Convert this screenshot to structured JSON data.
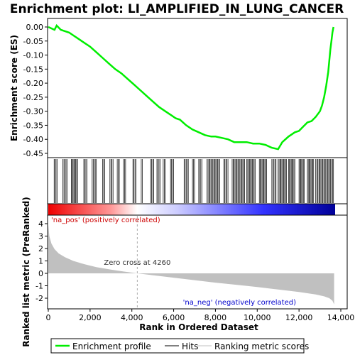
{
  "chart_data": {
    "type": "line",
    "title": "Enrichment plot: LI_AMPLIFIED_IN_LUNG_CANCER",
    "colors": {
      "profile": "#00ee00",
      "hits": "#000000",
      "metric_fill": "#c0c0c0",
      "pos_label": "#cc0000",
      "neg_label": "#0000cc",
      "zero_line": "#aaaaaa"
    },
    "top_panel": {
      "ylabel": "Enrichment score (ES)",
      "ylim": [
        -0.46,
        0.01
      ],
      "yticks": [
        "0.00",
        "-0.05",
        "-0.10",
        "-0.15",
        "-0.20",
        "-0.25",
        "-0.30",
        "-0.35",
        "-0.40",
        "-0.45"
      ],
      "ytick_values": [
        0.0,
        -0.05,
        -0.1,
        -0.15,
        -0.2,
        -0.25,
        -0.3,
        -0.35,
        -0.4,
        -0.45
      ],
      "series": [
        {
          "name": "Enrichment profile",
          "x": [
            0,
            300,
            400,
            600,
            800,
            1000,
            1200,
            1400,
            1700,
            2000,
            2300,
            2600,
            2900,
            3200,
            3500,
            3800,
            4100,
            4400,
            4700,
            5000,
            5300,
            5600,
            5900,
            6100,
            6300,
            6600,
            6900,
            7200,
            7500,
            7800,
            8000,
            8300,
            8600,
            8900,
            9200,
            9500,
            9800,
            10100,
            10400,
            10700,
            11000,
            11200,
            11500,
            11800,
            12000,
            12200,
            12400,
            12600,
            12800,
            13000,
            13100,
            13200,
            13300,
            13400,
            13450,
            13500,
            13550,
            13600,
            13650
          ],
          "values": [
            0.0,
            -0.01,
            0.005,
            -0.01,
            -0.015,
            -0.02,
            -0.03,
            -0.04,
            -0.055,
            -0.07,
            -0.09,
            -0.11,
            -0.13,
            -0.15,
            -0.165,
            -0.185,
            -0.205,
            -0.225,
            -0.245,
            -0.265,
            -0.285,
            -0.3,
            -0.315,
            -0.325,
            -0.33,
            -0.35,
            -0.365,
            -0.375,
            -0.385,
            -0.39,
            -0.39,
            -0.395,
            -0.4,
            -0.41,
            -0.41,
            -0.41,
            -0.415,
            -0.415,
            -0.42,
            -0.43,
            -0.435,
            -0.41,
            -0.39,
            -0.375,
            -0.37,
            -0.355,
            -0.34,
            -0.335,
            -0.32,
            -0.3,
            -0.28,
            -0.25,
            -0.21,
            -0.16,
            -0.12,
            -0.08,
            -0.05,
            -0.02,
            0.0
          ]
        }
      ]
    },
    "hits_band": {
      "segments": [
        [
          280,
          420
        ],
        [
          700,
          900
        ],
        [
          1100,
          1400
        ],
        [
          1700,
          1850
        ],
        [
          2100,
          2300
        ],
        [
          2600,
          2700
        ],
        [
          2950,
          3100
        ],
        [
          3300,
          3400
        ],
        [
          3600,
          3700
        ],
        [
          4050,
          4200
        ],
        [
          4450,
          4500
        ],
        [
          4900,
          5050
        ],
        [
          5200,
          5350
        ],
        [
          5500,
          5600
        ],
        [
          5850,
          6000
        ],
        [
          6500,
          6700
        ],
        [
          6900,
          7000
        ],
        [
          7200,
          7350
        ],
        [
          7600,
          8200
        ],
        [
          8400,
          8600
        ],
        [
          8800,
          9400
        ],
        [
          9500,
          9900
        ],
        [
          10100,
          10450
        ],
        [
          10700,
          10900
        ],
        [
          11000,
          11400
        ],
        [
          11500,
          11800
        ],
        [
          12000,
          12250
        ],
        [
          12400,
          12700
        ],
        [
          12800,
          13000
        ],
        [
          13000,
          13650
        ]
      ],
      "density_note": ""
    },
    "metric_panel": {
      "ylabel": "Ranked list metric (PreRanked)",
      "ylim": [
        -2.6,
        4.2
      ],
      "yticks": [
        "4",
        "3",
        "2",
        "1",
        "0",
        "-1",
        "-2"
      ],
      "ytick_values": [
        4,
        3,
        2,
        1,
        0,
        -1,
        -2
      ],
      "xlabel": "Rank in Ordered Dataset",
      "xlim": [
        0,
        14000
      ],
      "xticks": [
        "0",
        "2,000",
        "4,000",
        "6,000",
        "8,000",
        "10,000",
        "12,000",
        "14,000"
      ],
      "xtick_values": [
        0,
        2000,
        4000,
        6000,
        8000,
        10000,
        12000,
        14000
      ],
      "curve_x": [
        0,
        50,
        150,
        300,
        500,
        800,
        1200,
        1700,
        2300,
        3000,
        3600,
        4260,
        5000,
        6000,
        7000,
        8000,
        9000,
        10000,
        11000,
        12000,
        12800,
        13200,
        13450,
        13600,
        13680
      ],
      "curve_y": [
        3.9,
        3.0,
        2.4,
        1.95,
        1.6,
        1.3,
        1.0,
        0.75,
        0.5,
        0.3,
        0.15,
        0.0,
        -0.15,
        -0.35,
        -0.55,
        -0.75,
        -0.92,
        -1.1,
        -1.3,
        -1.5,
        -1.7,
        -1.85,
        -2.0,
        -2.2,
        -2.5
      ],
      "zero_cross_label": "Zero cross at 4260",
      "zero_cross_x": 4260,
      "pos_label": "'na_pos' (positively correlated)",
      "neg_label": "'na_neg' (negatively correlated)"
    },
    "legend": {
      "items": [
        {
          "label": "Enrichment profile",
          "color": "#00ee00"
        },
        {
          "label": "Hits",
          "color": "#000000"
        },
        {
          "label": "Ranking metric scores",
          "color": "#c0c0c0"
        }
      ]
    }
  }
}
